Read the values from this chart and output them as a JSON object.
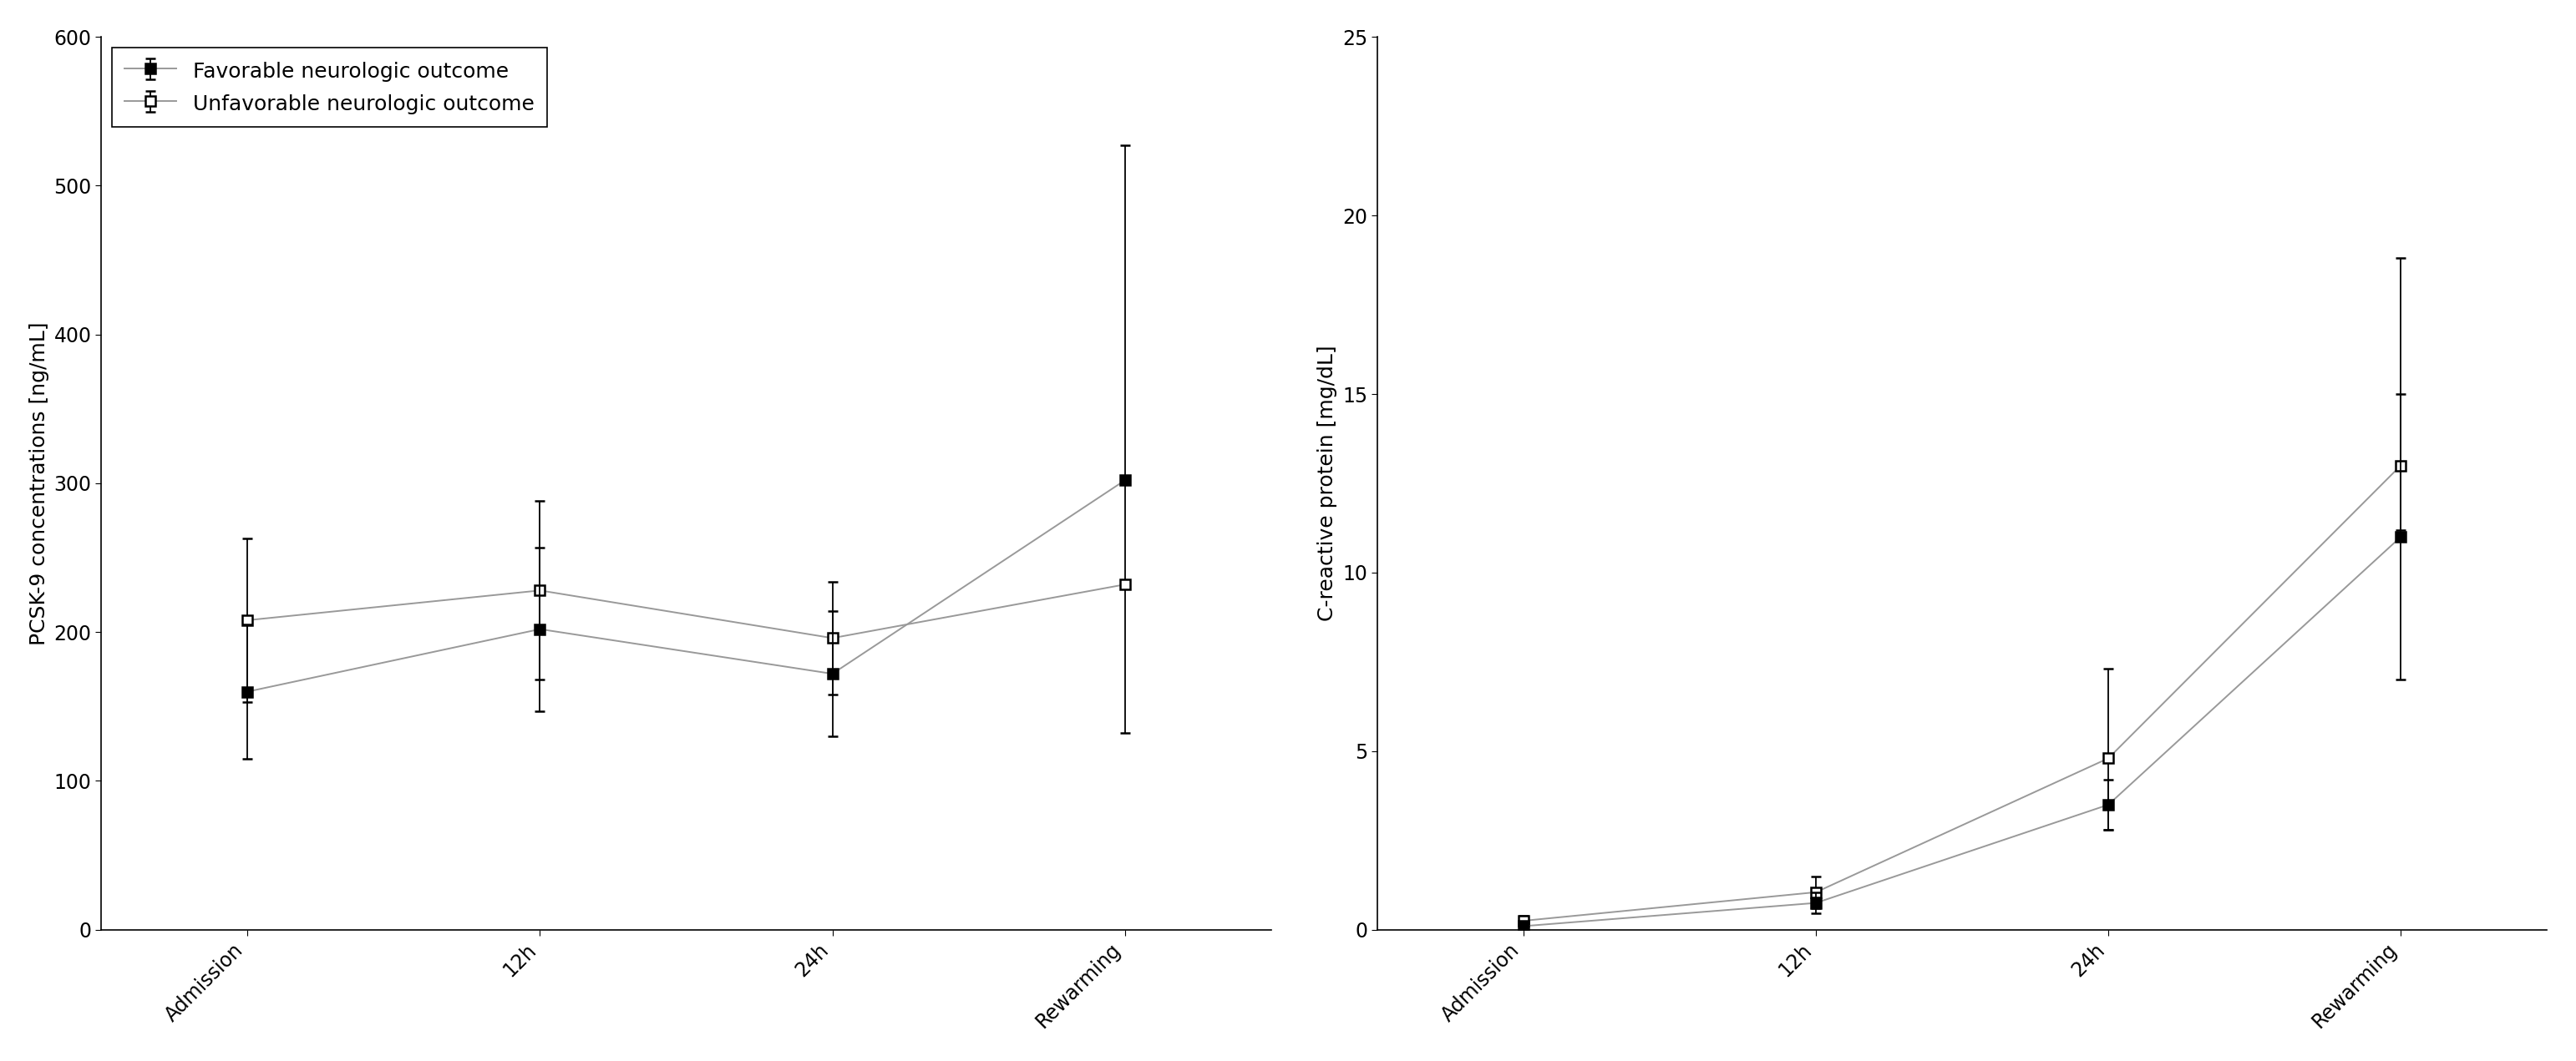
{
  "left_plot": {
    "xlabel_ticks": [
      "Admission",
      "12h",
      "24h",
      "Rewarming"
    ],
    "ylabel": "PCSK-9 concentrations [ng/mL]",
    "ylim": [
      0,
      600
    ],
    "yticks": [
      0,
      100,
      200,
      300,
      400,
      500,
      600
    ],
    "favorable": {
      "y": [
        160,
        202,
        172,
        302
      ],
      "yerr_low": [
        45,
        55,
        42,
        0
      ],
      "yerr_high": [
        45,
        55,
        42,
        0
      ],
      "label": "Favorable neurologic outcome"
    },
    "unfavorable": {
      "y": [
        208,
        228,
        196,
        232
      ],
      "yerr_low": [
        55,
        60,
        38,
        100
      ],
      "yerr_high": [
        55,
        60,
        38,
        295
      ],
      "label": "Unfavorable neurologic outcome"
    }
  },
  "right_plot": {
    "xlabel_ticks": [
      "Admission",
      "12h",
      "24h",
      "Rewarming"
    ],
    "ylabel": "C-reactive protein [mg/dL]",
    "ylim": [
      0,
      25
    ],
    "yticks": [
      0,
      5,
      10,
      15,
      20,
      25
    ],
    "favorable": {
      "y": [
        0.1,
        0.75,
        3.5,
        11.0
      ],
      "yerr_low": [
        0.1,
        0.3,
        0.7,
        4.0
      ],
      "yerr_high": [
        0.1,
        0.3,
        0.7,
        4.0
      ],
      "label": "Favorable neurologic outcome"
    },
    "unfavorable": {
      "y": [
        0.25,
        1.05,
        4.8,
        13.0
      ],
      "yerr_low": [
        0.15,
        0.45,
        2.0,
        1.8
      ],
      "yerr_high": [
        0.15,
        0.45,
        2.5,
        5.8
      ],
      "label": "Unfavorable neurologic outcome"
    }
  },
  "line_color": "#999999",
  "marker_size": 9,
  "line_width": 1.4,
  "cap_size": 4,
  "legend_fontsize": 18,
  "axis_label_fontsize": 18,
  "tick_fontsize": 17
}
